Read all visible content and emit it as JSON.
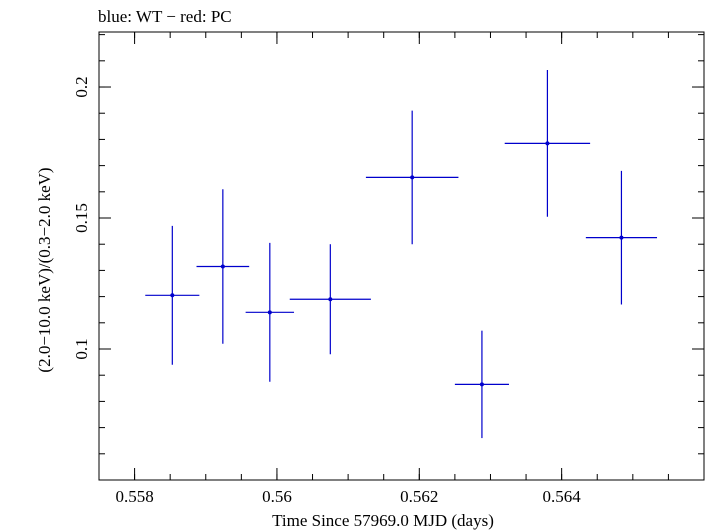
{
  "chart_data": {
    "type": "scatter",
    "title": "blue: WT − red: PC",
    "xlabel": "Time Since 57969.0 MJD (days)",
    "ylabel": "(2.0−10.0 keV)/(0.3−2.0 keV)",
    "xlim": [
      0.5575,
      0.566
    ],
    "ylim": [
      0.05,
      0.221
    ],
    "x_ticks": [
      {
        "value": 0.558,
        "label": "0.558"
      },
      {
        "value": 0.56,
        "label": "0.56"
      },
      {
        "value": 0.562,
        "label": "0.562"
      },
      {
        "value": 0.564,
        "label": "0.564"
      }
    ],
    "y_ticks": [
      {
        "value": 0.1,
        "label": "0.1"
      },
      {
        "value": 0.15,
        "label": "0.15"
      },
      {
        "value": 0.2,
        "label": "0.2"
      }
    ],
    "grid": false,
    "series": [
      {
        "color": "#0000cc",
        "points": [
          {
            "x": 0.55853,
            "xerr": 0.00038,
            "y": 0.1205,
            "yerr": 0.0265
          },
          {
            "x": 0.55924,
            "xerr": 0.00037,
            "y": 0.1315,
            "yerr": 0.0295
          },
          {
            "x": 0.5599,
            "xerr": 0.00034,
            "y": 0.114,
            "yerr": 0.0265
          },
          {
            "x": 0.56075,
            "xerr": 0.00057,
            "y": 0.119,
            "yerr": 0.021
          },
          {
            "x": 0.5619,
            "xerr": 0.00065,
            "y": 0.1655,
            "yerr": 0.0255
          },
          {
            "x": 0.56288,
            "xerr": 0.00038,
            "y": 0.0865,
            "yerr": 0.0205
          },
          {
            "x": 0.5638,
            "xerr": 0.0006,
            "y": 0.1785,
            "yerr": 0.028
          },
          {
            "x": 0.56484,
            "xerr": 0.0005,
            "y": 0.1425,
            "yerr": 0.0255
          }
        ]
      }
    ]
  }
}
